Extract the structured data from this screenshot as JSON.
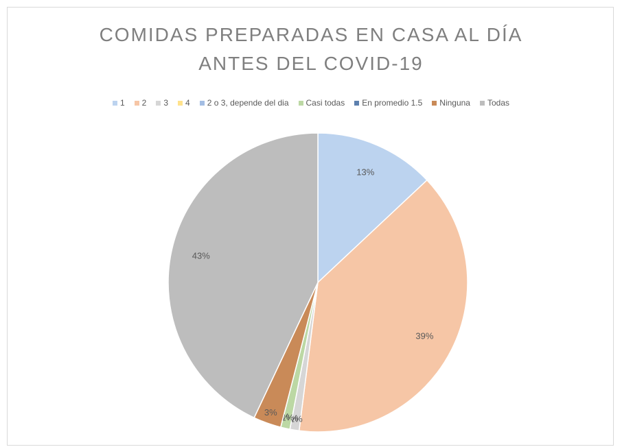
{
  "chart_data": {
    "type": "pie",
    "title": "COMIDAS PREPARADAS EN CASA AL DÍA ANTES DEL COVID-19",
    "categories": [
      "1",
      "2",
      "3",
      "4",
      "2 o 3, depende del dia",
      "Casi todas",
      "En promedio 1.5",
      "Ninguna",
      "Todas"
    ],
    "values": [
      13,
      39,
      1,
      0,
      0,
      1,
      0,
      3,
      43
    ],
    "value_labels": [
      "13%",
      "39%",
      "1%",
      "0%",
      "0%",
      "1%",
      "0%",
      "3%",
      "43%"
    ],
    "colors": [
      "#bcd3ef",
      "#f6c6a6",
      "#d6d6d6",
      "#ffe28c",
      "#a3bde3",
      "#bcd8a4",
      "#5d80ae",
      "#c98a58",
      "#bdbdbd"
    ],
    "legend": "top"
  }
}
